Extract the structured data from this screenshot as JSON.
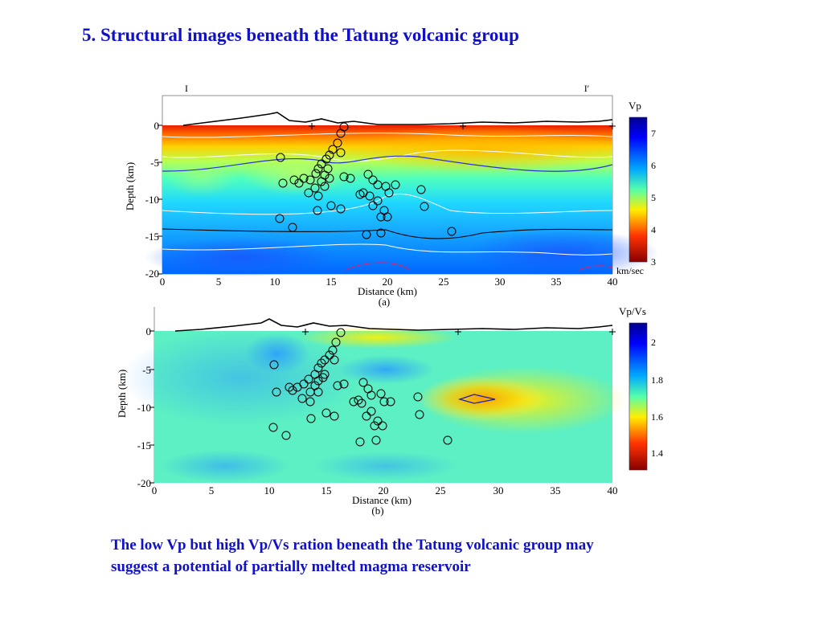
{
  "slide": {
    "title": "5. Structural images beneath the Tatung volcanic group",
    "caption_line1": "The low Vp but high Vp/Vs ration beneath the Tatung volcanic group may",
    "caption_line2": "suggest a potential of partially melted magma reservoir"
  },
  "colors": {
    "title_text": "#1010c8",
    "caption_text": "#1010c8"
  },
  "panel_a": {
    "profile_start_label": "I",
    "profile_end_label": "I′",
    "y_label": "Depth (km)",
    "x_label": "Distance (km)",
    "panel_label": "(a)",
    "x_ticks": [
      "0",
      "5",
      "10",
      "15",
      "20",
      "25",
      "30",
      "35",
      "40"
    ],
    "y_ticks": [
      "0",
      "-5",
      "-10",
      "-15",
      "-20"
    ],
    "colorbar_title": "Vp",
    "colorbar_unit": "km/sec",
    "colorbar_ticks": [
      "7",
      "6",
      "5",
      "4",
      "3"
    ]
  },
  "panel_b": {
    "y_label": "Depth (km)",
    "x_label": "Distance (km)",
    "panel_label": "(b)",
    "x_ticks": [
      "0",
      "5",
      "10",
      "15",
      "20",
      "25",
      "30",
      "35",
      "40"
    ],
    "y_ticks": [
      "0",
      "-5",
      "-10",
      "-15",
      "-20"
    ],
    "colorbar_title": "Vp/Vs",
    "colorbar_ticks": [
      "2",
      "1.8",
      "1.6",
      "1.4"
    ]
  }
}
